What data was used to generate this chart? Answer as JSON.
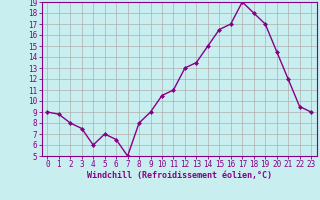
{
  "x": [
    0,
    1,
    2,
    3,
    4,
    5,
    6,
    7,
    8,
    9,
    10,
    11,
    12,
    13,
    14,
    15,
    16,
    17,
    18,
    19,
    20,
    21,
    22,
    23
  ],
  "y": [
    9.0,
    8.8,
    8.0,
    7.5,
    6.0,
    7.0,
    6.5,
    5.0,
    8.0,
    9.0,
    10.5,
    11.0,
    13.0,
    13.5,
    15.0,
    16.5,
    17.0,
    19.0,
    18.0,
    17.0,
    14.5,
    12.0,
    9.5,
    9.0
  ],
  "ylim": [
    5,
    19
  ],
  "yticks": [
    5,
    6,
    7,
    8,
    9,
    10,
    11,
    12,
    13,
    14,
    15,
    16,
    17,
    18,
    19
  ],
  "xticks": [
    0,
    1,
    2,
    3,
    4,
    5,
    6,
    7,
    8,
    9,
    10,
    11,
    12,
    13,
    14,
    15,
    16,
    17,
    18,
    19,
    20,
    21,
    22,
    23
  ],
  "xlabel": "Windchill (Refroidissement éolien,°C)",
  "line_color": "#880088",
  "marker": "D",
  "marker_size": 2.0,
  "bg_color": "#c8eef0",
  "grid_color": "#b0b0b0",
  "line_width": 1.0,
  "tick_fontsize": 5.5,
  "xlabel_fontsize": 6.0
}
